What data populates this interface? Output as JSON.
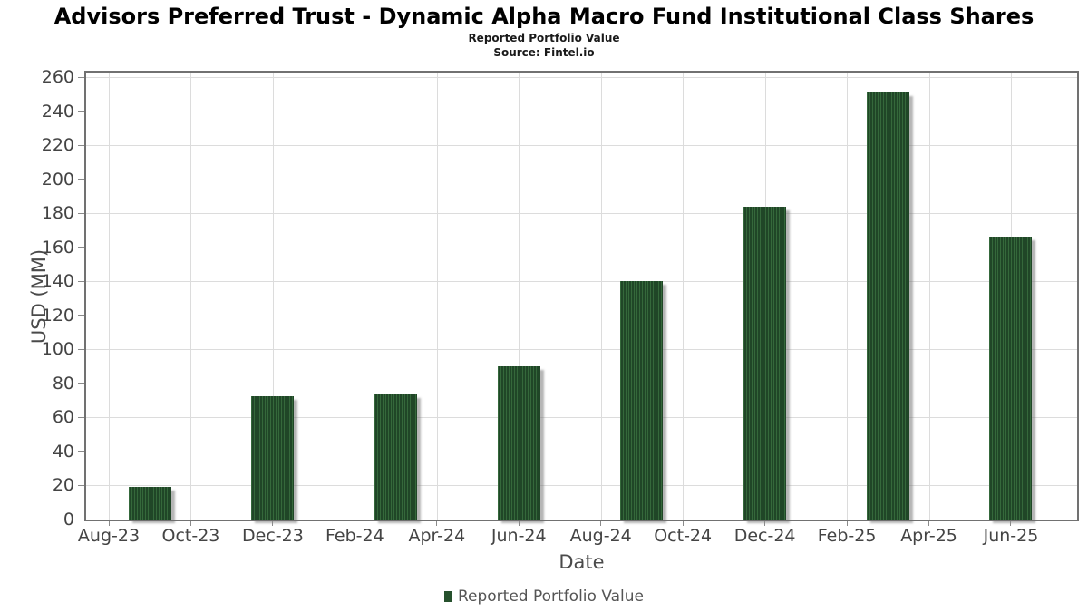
{
  "header": {
    "title": "Advisors Preferred Trust - Dynamic Alpha Macro Fund Institutional Class Shares",
    "subtitle": "Reported Portfolio Value",
    "source": "Source: Fintel.io"
  },
  "colors": {
    "bar_fill": "#204627",
    "bar_stripe": "#35683b",
    "bar_shadow": "rgba(110,110,110,0.5)",
    "grid": "#dcdcdc",
    "plot_border": "#717171",
    "tick_text": "#444444",
    "axis_label_text": "#4a4a4a",
    "legend_marker": "#26512d"
  },
  "chart_data": {
    "type": "bar",
    "title": "Advisors Preferred Trust - Dynamic Alpha Macro Fund Institutional Class Shares",
    "subtitle": "Reported Portfolio Value",
    "source": "Source: Fintel.io",
    "xlabel": "Date",
    "ylabel": "USD (MM)",
    "ylim": [
      0,
      260
    ],
    "y_tick_step": 20,
    "y_ticks": [
      0,
      20,
      40,
      60,
      80,
      100,
      120,
      140,
      160,
      180,
      200,
      220,
      240,
      260
    ],
    "x_tick_labels": [
      "Aug-23",
      "Oct-23",
      "Dec-23",
      "Feb-24",
      "Apr-24",
      "Jun-24",
      "Aug-24",
      "Oct-24",
      "Dec-24",
      "Feb-25",
      "Apr-25",
      "Jun-25"
    ],
    "grid": true,
    "legend_position": "bottom",
    "legend": [
      "Reported Portfolio Value"
    ],
    "series": [
      {
        "name": "Reported Portfolio Value",
        "points": [
          {
            "label": "Sep-23",
            "month_index": 1,
            "value": 19
          },
          {
            "label": "Dec-23",
            "month_index": 4,
            "value": 72.7
          },
          {
            "label": "Mar-24",
            "month_index": 7,
            "value": 73.5
          },
          {
            "label": "Jun-24",
            "month_index": 10,
            "value": 90
          },
          {
            "label": "Sep-24",
            "month_index": 13,
            "value": 140
          },
          {
            "label": "Dec-24",
            "month_index": 16,
            "value": 184
          },
          {
            "label": "Mar-25",
            "month_index": 19,
            "value": 251
          },
          {
            "label": "Jun-25",
            "month_index": 22,
            "value": 166.5
          }
        ]
      }
    ]
  }
}
